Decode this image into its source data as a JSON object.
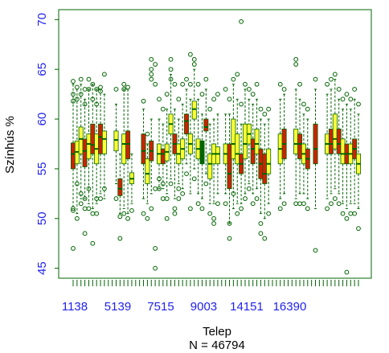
{
  "chart_data": {
    "type": "boxplot",
    "xlabel": "Telep",
    "n_line": "N =  46794",
    "ylabel": "Színhús %",
    "ylim": [
      44,
      71
    ],
    "yticks": [
      45,
      50,
      55,
      60,
      65,
      70
    ],
    "xtick_labels": [
      "1138",
      "5139",
      "7515",
      "9003",
      "14151",
      "16390"
    ],
    "colors": {
      "axis": "#006400",
      "whisker": "#006400",
      "outlier": "#006400",
      "median": "#006400",
      "fill_red": "#cc2200",
      "fill_yellow": "#ffff33",
      "tick_label": "#2222ee"
    },
    "boxes": [
      {
        "pos": 1,
        "q1": 55.0,
        "med": 56.5,
        "q3": 57.6,
        "lo": 51.2,
        "hi": 63.5,
        "fill": "red"
      },
      {
        "pos": 2,
        "q1": 55.5,
        "med": 56.7,
        "q3": 57.8,
        "lo": 50.5,
        "hi": 63.0,
        "fill": "yellow"
      },
      {
        "pos": 3,
        "q1": 56.5,
        "med": 58.0,
        "q3": 59.2,
        "lo": 52.0,
        "hi": 63.5,
        "fill": "yellow"
      },
      {
        "pos": 4,
        "q1": 55.2,
        "med": 56.8,
        "q3": 58.0,
        "lo": 52.0,
        "hi": 62.0,
        "fill": "red"
      },
      {
        "pos": 5,
        "q1": 56.0,
        "med": 57.5,
        "q3": 58.5,
        "lo": 51.5,
        "hi": 63.0,
        "fill": "yellow"
      },
      {
        "pos": 6,
        "q1": 56.5,
        "med": 57.4,
        "q3": 59.5,
        "lo": 51.0,
        "hi": 63.5,
        "fill": "red"
      },
      {
        "pos": 7,
        "q1": 55.5,
        "med": 57.0,
        "q3": 58.5,
        "lo": 51.5,
        "hi": 63.0,
        "fill": "yellow"
      },
      {
        "pos": 8,
        "q1": 56.5,
        "med": 58.2,
        "q3": 59.5,
        "lo": 52.5,
        "hi": 63.0,
        "fill": "red"
      },
      {
        "pos": 9,
        "q1": 56.5,
        "med": 58.0,
        "q3": 58.8,
        "lo": 52.0,
        "hi": 62.5,
        "fill": "yellow"
      },
      {
        "pos": 12,
        "q1": 56.8,
        "med": 57.9,
        "q3": 58.8,
        "lo": 53.5,
        "hi": 61.5,
        "fill": "yellow"
      },
      {
        "pos": 13,
        "q1": 52.3,
        "med": 53.0,
        "q3": 54.0,
        "lo": 50.5,
        "hi": 56.5,
        "fill": "red"
      },
      {
        "pos": 14,
        "q1": 55.5,
        "med": 57.5,
        "q3": 58.5,
        "lo": 51.0,
        "hi": 63.0,
        "fill": "yellow"
      },
      {
        "pos": 15,
        "q1": 56.0,
        "med": 57.5,
        "q3": 58.8,
        "lo": 50.5,
        "hi": 63.0,
        "fill": "red"
      },
      {
        "pos": 16,
        "q1": 53.5,
        "med": 54.0,
        "q3": 54.6,
        "lo": 51.5,
        "hi": 56.5,
        "fill": "yellow"
      },
      {
        "pos": 19,
        "q1": 55.5,
        "med": 56.8,
        "q3": 58.5,
        "lo": 52.0,
        "hi": 61.0,
        "fill": "red"
      },
      {
        "pos": 20,
        "q1": 53.5,
        "med": 54.5,
        "q3": 56.0,
        "lo": 51.5,
        "hi": 57.5,
        "fill": "yellow"
      },
      {
        "pos": 21,
        "q1": 55.8,
        "med": 56.8,
        "q3": 57.8,
        "lo": 52.5,
        "hi": 60.0,
        "fill": "red"
      },
      {
        "pos": 23,
        "q1": 55.5,
        "med": 56.5,
        "q3": 57.5,
        "lo": 53.0,
        "hi": 60.0,
        "fill": "yellow"
      },
      {
        "pos": 24,
        "q1": 55.5,
        "med": 56.5,
        "q3": 57.0,
        "lo": 53.0,
        "hi": 59.5,
        "fill": "red"
      },
      {
        "pos": 25,
        "q1": 55.8,
        "med": 56.7,
        "q3": 57.5,
        "lo": 52.5,
        "hi": 61.0,
        "fill": "yellow"
      },
      {
        "pos": 26,
        "q1": 58.5,
        "med": 59.5,
        "q3": 60.5,
        "lo": 54.0,
        "hi": 64.5,
        "fill": "yellow"
      },
      {
        "pos": 27,
        "q1": 56.5,
        "med": 57.5,
        "q3": 58.5,
        "lo": 52.0,
        "hi": 61.0,
        "fill": "red"
      },
      {
        "pos": 28,
        "q1": 55.5,
        "med": 56.5,
        "q3": 57.5,
        "lo": 53.5,
        "hi": 60.0,
        "fill": "yellow"
      },
      {
        "pos": 29,
        "q1": 56.0,
        "med": 57.0,
        "q3": 58.0,
        "lo": 53.0,
        "hi": 61.5,
        "fill": "yellow"
      },
      {
        "pos": 30,
        "q1": 58.5,
        "med": 59.8,
        "q3": 60.5,
        "lo": 55.5,
        "hi": 63.0,
        "fill": "red"
      },
      {
        "pos": 31,
        "q1": 56.5,
        "med": 57.5,
        "q3": 58.5,
        "lo": 52.5,
        "hi": 62.0,
        "fill": "yellow"
      },
      {
        "pos": 32,
        "q1": 60.0,
        "med": 61.0,
        "q3": 61.8,
        "lo": 55.0,
        "hi": 65.0,
        "fill": "yellow"
      },
      {
        "pos": 33,
        "q1": 56.0,
        "med": 57.0,
        "q3": 58.0,
        "lo": 52.5,
        "hi": 62.0,
        "fill": "yellow"
      },
      {
        "pos": 34,
        "q1": 55.5,
        "med": 56.2,
        "q3": 57.8,
        "lo": 52.0,
        "hi": 60.5,
        "fill": "green"
      },
      {
        "pos": 35,
        "q1": 58.8,
        "med": 59.2,
        "q3": 60.0,
        "lo": 54.5,
        "hi": 63.0,
        "fill": "red"
      },
      {
        "pos": 36,
        "q1": 54.0,
        "med": 55.5,
        "q3": 56.5,
        "lo": 51.5,
        "hi": 59.5,
        "fill": "yellow"
      },
      {
        "pos": 37,
        "q1": 55.5,
        "med": 56.5,
        "q3": 57.5,
        "lo": 51.5,
        "hi": 60.0,
        "fill": "yellow"
      },
      {
        "pos": 38,
        "q1": 55.5,
        "med": 56.5,
        "q3": 57.2,
        "lo": 52.5,
        "hi": 60.5,
        "fill": "yellow"
      },
      {
        "pos": 40,
        "q1": 55.5,
        "med": 56.5,
        "q3": 57.5,
        "lo": 52.5,
        "hi": 60.5,
        "fill": "yellow"
      },
      {
        "pos": 41,
        "q1": 53.0,
        "med": 54.5,
        "q3": 57.5,
        "lo": 49.5,
        "hi": 60.5,
        "fill": "red"
      },
      {
        "pos": 42,
        "q1": 56.0,
        "med": 57.5,
        "q3": 60.0,
        "lo": 51.0,
        "hi": 63.5,
        "fill": "yellow"
      },
      {
        "pos": 43,
        "q1": 55.5,
        "med": 56.5,
        "q3": 58.5,
        "lo": 51.5,
        "hi": 62.0,
        "fill": "yellow"
      },
      {
        "pos": 44,
        "q1": 54.5,
        "med": 55.5,
        "q3": 56.5,
        "lo": 51.5,
        "hi": 59.5,
        "fill": "red"
      },
      {
        "pos": 45,
        "q1": 56.0,
        "med": 57.5,
        "q3": 59.5,
        "lo": 52.5,
        "hi": 63.0,
        "fill": "yellow"
      },
      {
        "pos": 46,
        "q1": 57.5,
        "med": 58.5,
        "q3": 59.5,
        "lo": 53.5,
        "hi": 62.0,
        "fill": "yellow"
      },
      {
        "pos": 47,
        "q1": 55.5,
        "med": 57.0,
        "q3": 58.0,
        "lo": 52.5,
        "hi": 61.5,
        "fill": "red"
      },
      {
        "pos": 48,
        "q1": 56.5,
        "med": 57.5,
        "q3": 59.0,
        "lo": 53.0,
        "hi": 62.0,
        "fill": "yellow"
      },
      {
        "pos": 49,
        "q1": 54.0,
        "med": 55.5,
        "q3": 57.0,
        "lo": 50.5,
        "hi": 60.0,
        "fill": "red"
      },
      {
        "pos": 50,
        "q1": 53.5,
        "med": 54.5,
        "q3": 56.5,
        "lo": 50.0,
        "hi": 59.5,
        "fill": "red"
      },
      {
        "pos": 51,
        "q1": 54.5,
        "med": 55.5,
        "q3": 57.0,
        "lo": 51.5,
        "hi": 60.0,
        "fill": "yellow"
      },
      {
        "pos": 54,
        "q1": 55.5,
        "med": 57.0,
        "q3": 58.5,
        "lo": 52.0,
        "hi": 62.0,
        "fill": "yellow"
      },
      {
        "pos": 55,
        "q1": 56.0,
        "med": 57.5,
        "q3": 59.0,
        "lo": 52.5,
        "hi": 62.5,
        "fill": "red"
      },
      {
        "pos": 58,
        "q1": 56.5,
        "med": 57.5,
        "q3": 59.0,
        "lo": 52.0,
        "hi": 63.0,
        "fill": "yellow"
      },
      {
        "pos": 59,
        "q1": 56.0,
        "med": 57.5,
        "q3": 58.5,
        "lo": 52.5,
        "hi": 62.0,
        "fill": "red"
      },
      {
        "pos": 60,
        "q1": 55.5,
        "med": 56.5,
        "q3": 57.5,
        "lo": 52.5,
        "hi": 60.5,
        "fill": "yellow"
      },
      {
        "pos": 61,
        "q1": 55.0,
        "med": 56.0,
        "q3": 57.0,
        "lo": 52.0,
        "hi": 60.0,
        "fill": "red"
      },
      {
        "pos": 63,
        "q1": 55.5,
        "med": 57.0,
        "q3": 59.5,
        "lo": 51.0,
        "hi": 63.0,
        "fill": "red"
      },
      {
        "pos": 66,
        "q1": 56.5,
        "med": 57.5,
        "q3": 58.5,
        "lo": 52.0,
        "hi": 62.5,
        "fill": "yellow"
      },
      {
        "pos": 67,
        "q1": 56.5,
        "med": 57.5,
        "q3": 59.0,
        "lo": 52.5,
        "hi": 63.0,
        "fill": "red"
      },
      {
        "pos": 68,
        "q1": 57.0,
        "med": 58.0,
        "q3": 60.5,
        "lo": 53.0,
        "hi": 64.0,
        "fill": "yellow"
      },
      {
        "pos": 69,
        "q1": 56.5,
        "med": 57.5,
        "q3": 59.0,
        "lo": 52.5,
        "hi": 62.0,
        "fill": "red"
      },
      {
        "pos": 70,
        "q1": 55.5,
        "med": 56.5,
        "q3": 58.0,
        "lo": 51.5,
        "hi": 61.0,
        "fill": "yellow"
      },
      {
        "pos": 71,
        "q1": 55.5,
        "med": 56.5,
        "q3": 57.5,
        "lo": 51.0,
        "hi": 61.5,
        "fill": "red"
      },
      {
        "pos": 72,
        "q1": 55.5,
        "med": 56.5,
        "q3": 57.5,
        "lo": 51.5,
        "hi": 61.0,
        "fill": "yellow"
      },
      {
        "pos": 73,
        "q1": 56.0,
        "med": 57.0,
        "q3": 58.0,
        "lo": 51.5,
        "hi": 62.0,
        "fill": "red"
      },
      {
        "pos": 74,
        "q1": 54.5,
        "med": 55.5,
        "q3": 56.5,
        "lo": 51.0,
        "hi": 60.5,
        "fill": "yellow"
      }
    ],
    "outliers": [
      [
        1,
        63.8
      ],
      [
        1,
        62.5
      ],
      [
        1,
        61.8
      ],
      [
        1,
        51.0
      ],
      [
        1,
        50.8
      ],
      [
        1,
        47.0
      ],
      [
        2,
        63.2
      ],
      [
        2,
        62.0
      ],
      [
        2,
        53.5
      ],
      [
        2,
        50.0
      ],
      [
        3,
        64.0
      ],
      [
        3,
        62.5
      ],
      [
        3,
        52.5
      ],
      [
        3,
        51.5
      ],
      [
        4,
        63.0
      ],
      [
        4,
        61.5
      ],
      [
        4,
        52.0
      ],
      [
        4,
        51.0
      ],
      [
        4,
        48.5
      ],
      [
        5,
        64.0
      ],
      [
        5,
        63.0
      ],
      [
        5,
        53.0
      ],
      [
        5,
        51.0
      ],
      [
        6,
        63.5
      ],
      [
        6,
        62.0
      ],
      [
        6,
        50.5
      ],
      [
        6,
        47.5
      ],
      [
        7,
        63.0
      ],
      [
        7,
        61.5
      ],
      [
        7,
        52.0
      ],
      [
        7,
        50.5
      ],
      [
        8,
        63.2
      ],
      [
        8,
        62.8
      ],
      [
        8,
        52.0
      ],
      [
        9,
        64.5
      ],
      [
        9,
        53.0
      ],
      [
        12,
        63.0
      ],
      [
        12,
        52.0
      ],
      [
        13,
        50.2
      ],
      [
        13,
        48.0
      ],
      [
        14,
        63.5
      ],
      [
        14,
        63.0
      ],
      [
        14,
        50.5
      ],
      [
        15,
        63.2
      ],
      [
        15,
        50.0
      ],
      [
        16,
        50.8
      ],
      [
        19,
        61.8
      ],
      [
        19,
        50.5
      ],
      [
        20,
        58.5
      ],
      [
        20,
        50.0
      ],
      [
        21,
        66.0
      ],
      [
        21,
        65.0
      ],
      [
        21,
        64.5
      ],
      [
        21,
        64.0
      ],
      [
        21,
        51.0
      ],
      [
        22,
        65.5
      ],
      [
        22,
        63.5
      ],
      [
        22,
        53.0
      ],
      [
        22,
        47.0
      ],
      [
        22,
        45.0
      ],
      [
        23,
        62.0
      ],
      [
        23,
        54.0
      ],
      [
        23,
        53.0
      ],
      [
        24,
        61.0
      ],
      [
        24,
        53.5
      ],
      [
        24,
        52.0
      ],
      [
        25,
        62.5
      ],
      [
        25,
        52.0
      ],
      [
        25,
        50.0
      ],
      [
        26,
        66.0
      ],
      [
        26,
        65.0
      ],
      [
        26,
        64.0
      ],
      [
        26,
        53.5
      ],
      [
        27,
        63.5
      ],
      [
        27,
        51.0
      ],
      [
        27,
        50.5
      ],
      [
        28,
        62.0
      ],
      [
        28,
        53.0
      ],
      [
        28,
        52.0
      ],
      [
        29,
        63.5
      ],
      [
        29,
        52.5
      ],
      [
        30,
        64.0
      ],
      [
        30,
        54.5
      ],
      [
        31,
        66.5
      ],
      [
        31,
        63.5
      ],
      [
        31,
        51.0
      ],
      [
        32,
        66.0
      ],
      [
        32,
        65.5
      ],
      [
        32,
        54.0
      ],
      [
        33,
        63.5
      ],
      [
        33,
        51.5
      ],
      [
        34,
        62.5
      ],
      [
        34,
        51.0
      ],
      [
        35,
        64.0
      ],
      [
        35,
        53.5
      ],
      [
        36,
        61.0
      ],
      [
        36,
        50.5
      ],
      [
        37,
        62.0
      ],
      [
        37,
        50.0
      ],
      [
        37,
        49.5
      ],
      [
        38,
        62.5
      ],
      [
        38,
        51.5
      ],
      [
        40,
        63.0
      ],
      [
        40,
        51.5
      ],
      [
        41,
        62.0
      ],
      [
        41,
        49.5
      ],
      [
        41,
        48.0
      ],
      [
        42,
        64.0
      ],
      [
        42,
        52.5
      ],
      [
        43,
        64.5
      ],
      [
        43,
        50.5
      ],
      [
        44,
        69.8
      ],
      [
        44,
        61.5
      ],
      [
        44,
        51.0
      ],
      [
        45,
        63.5
      ],
      [
        45,
        52.0
      ],
      [
        46,
        63.0
      ],
      [
        46,
        53.0
      ],
      [
        47,
        62.5
      ],
      [
        47,
        51.5
      ],
      [
        48,
        63.5
      ],
      [
        48,
        52.0
      ],
      [
        49,
        61.0
      ],
      [
        49,
        49.5
      ],
      [
        49,
        48.5
      ],
      [
        50,
        60.5
      ],
      [
        50,
        48.0
      ],
      [
        51,
        61.0
      ],
      [
        51,
        50.5
      ],
      [
        54,
        63.5
      ],
      [
        54,
        51.0
      ],
      [
        55,
        63.0
      ],
      [
        55,
        51.5
      ],
      [
        58,
        66.0
      ],
      [
        58,
        65.5
      ],
      [
        58,
        51.5
      ],
      [
        59,
        63.5
      ],
      [
        59,
        51.5
      ],
      [
        60,
        61.5
      ],
      [
        60,
        51.5
      ],
      [
        61,
        61.0
      ],
      [
        61,
        51.0
      ],
      [
        63,
        64.0
      ],
      [
        63,
        46.8
      ],
      [
        66,
        63.5
      ],
      [
        66,
        51.0
      ],
      [
        67,
        64.0
      ],
      [
        67,
        51.5
      ],
      [
        68,
        64.5
      ],
      [
        68,
        52.0
      ],
      [
        69,
        63.0
      ],
      [
        69,
        51.5
      ],
      [
        70,
        62.0
      ],
      [
        70,
        50.5
      ],
      [
        71,
        62.5
      ],
      [
        71,
        50.0
      ],
      [
        71,
        44.6
      ],
      [
        72,
        62.0
      ],
      [
        72,
        50.5
      ],
      [
        73,
        63.0
      ],
      [
        73,
        50.5
      ],
      [
        74,
        61.5
      ],
      [
        74,
        49.0
      ]
    ]
  }
}
